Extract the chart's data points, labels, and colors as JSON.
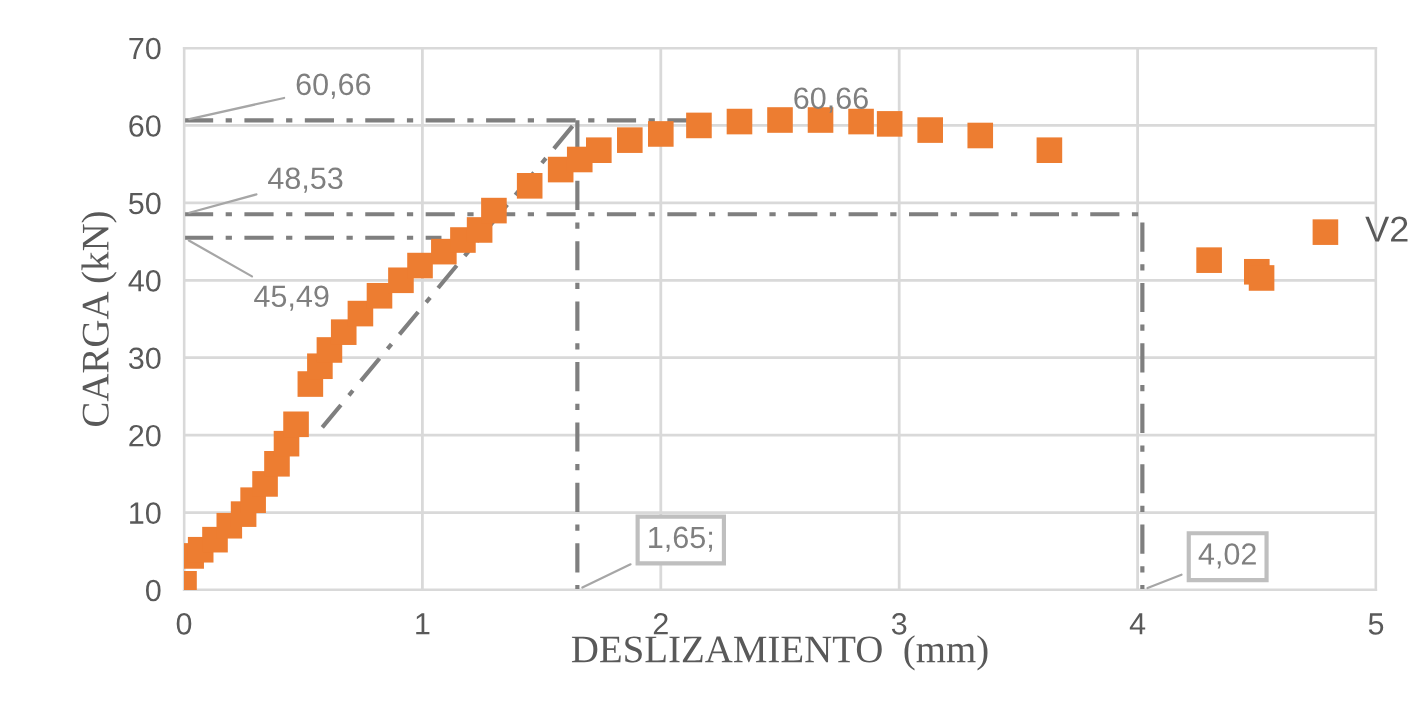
{
  "chart_data": {
    "type": "scatter",
    "xlabel": "DESLIZAMIENTO  (mm)",
    "ylabel": "CARGA (kN)",
    "xlim": [
      0,
      5
    ],
    "ylim": [
      0,
      70
    ],
    "xticks": [
      0,
      1,
      2,
      3,
      4,
      5
    ],
    "yticks": [
      0,
      10,
      20,
      30,
      40,
      50,
      60,
      70
    ],
    "grid": true,
    "legend": "right",
    "marker": "square",
    "series": [
      {
        "name": "V2",
        "color": "#ed7d31",
        "x": [
          0,
          0.03,
          0.07,
          0.13,
          0.19,
          0.25,
          0.29,
          0.34,
          0.39,
          0.43,
          0.47,
          0.53,
          0.57,
          0.61,
          0.67,
          0.74,
          0.82,
          0.91,
          0.99,
          1.09,
          1.17,
          1.24,
          1.3,
          1.45,
          1.58,
          1.66,
          1.74,
          1.87,
          2.0,
          2.16,
          2.33,
          2.5,
          2.67,
          2.84,
          2.96,
          3.13,
          3.34,
          3.63,
          4.3,
          4.5,
          4.52
        ],
        "values": [
          0.8,
          4.4,
          5.2,
          6.5,
          8.3,
          9.8,
          11.6,
          13.7,
          16.3,
          18.9,
          21.4,
          26.6,
          28.9,
          31,
          33.3,
          35.7,
          38,
          40,
          41.9,
          43.7,
          45.2,
          46.5,
          49,
          52.2,
          54.3,
          55.6,
          56.8,
          58.1,
          58.9,
          60,
          60.5,
          60.7,
          60.7,
          60.5,
          60.2,
          59.4,
          58.7,
          56.8,
          42.6,
          41.1,
          40.3
        ]
      },
      {
        "type": "line",
        "color": "#7f7f7f",
        "line_style": "dashed",
        "marker": "none",
        "x": [
          0,
          2.2
        ],
        "values": [
          60.66,
          60.66
        ]
      },
      {
        "type": "line",
        "color": "#7f7f7f",
        "line_style": "dashed",
        "marker": "none",
        "x": [
          1.65,
          1.65
        ],
        "values": [
          60.66,
          0
        ]
      },
      {
        "type": "line",
        "color": "#7f7f7f",
        "line_style": "dashed",
        "marker": "none",
        "x": [
          0,
          4.02,
          4.02
        ],
        "values": [
          48.53,
          48.53,
          0
        ]
      },
      {
        "type": "line",
        "color": "#7f7f7f",
        "line_style": "dashed",
        "marker": "none",
        "x": [
          0,
          1.08
        ],
        "values": [
          45.49,
          45.49
        ]
      },
      {
        "type": "line",
        "color": "#7f7f7f",
        "line_style": "dashed",
        "marker": "none",
        "x": [
          0.58,
          1.65
        ],
        "values": [
          21,
          60.66
        ]
      }
    ],
    "annotations": [
      {
        "text": "60,66",
        "x": 0,
        "y": 60.66
      },
      {
        "text": "48,53",
        "x": 0,
        "y": 48.53
      },
      {
        "text": "45,49",
        "x": 0,
        "y": 45.49
      },
      {
        "text": "1,65;",
        "x": 1.65,
        "y": 0
      },
      {
        "text": "4,02",
        "x": 4.02,
        "y": 0
      },
      {
        "text": "60,66",
        "x": 2.67,
        "y": 60.66
      }
    ]
  }
}
